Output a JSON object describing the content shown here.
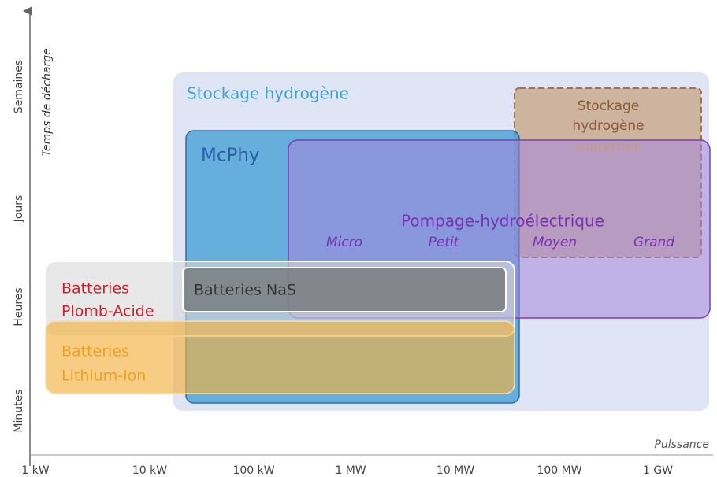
{
  "axes": {
    "y_title": "Temps de décharge",
    "y_labels": [
      "Semaines",
      "Jours",
      "Heures",
      "Minutes"
    ],
    "x_title": "Pulssance",
    "x_labels": [
      "1 kW",
      "10 kW",
      "100 kW",
      "1 MW",
      "10 MW",
      "100 MW",
      "1 GW"
    ]
  },
  "regions": {
    "hydrogen": {
      "label": "Stockage hydrogène"
    },
    "underground": {
      "lines": [
        "Stockage",
        "hydrogène",
        "souterrain"
      ]
    },
    "mcphy": {
      "label": "McPhy"
    },
    "pumped": {
      "label": "Pompage-hydroélectrique",
      "sublabels": [
        "Micro",
        "Petit",
        "Moyen",
        "Grand"
      ]
    },
    "lead_acid": {
      "lines": [
        "Batteries",
        "Plomb-Acide"
      ]
    },
    "lithium": {
      "lines": [
        "Batteries",
        "Lithium-Ion"
      ]
    },
    "nas": {
      "label": "Batteries NaS"
    }
  }
}
